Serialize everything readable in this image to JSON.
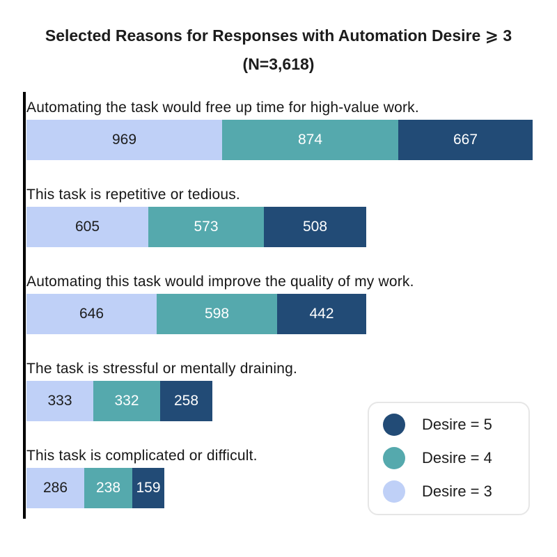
{
  "title": {
    "line1": "Selected Reasons for Responses with Automation Desire ⩾ 3",
    "line2": "(N=3,618)"
  },
  "colors": {
    "desire5_navy": "#224b76",
    "desire4_teal": "#55a9ad",
    "desire3_lightblue": "#bfd0f7",
    "axis": "#000000",
    "title_text": "#1c1c1c",
    "label_text": "#161616",
    "legend_border": "#e6e6e6",
    "background": "#ffffff"
  },
  "legend": {
    "items": [
      {
        "label": "Desire = 5",
        "color": "#224b76"
      },
      {
        "label": "Desire = 4",
        "color": "#55a9ad"
      },
      {
        "label": "Desire = 3",
        "color": "#bfd0f7"
      }
    ]
  },
  "chart_data": {
    "type": "bar",
    "orientation": "horizontal",
    "stacked": true,
    "title": "Selected Reasons for Responses with Automation Desire ⩾ 3 (N=3,618)",
    "xlabel": "",
    "ylabel": "",
    "grid": false,
    "legend_position": "lower right",
    "categories": [
      "Automating the task would free up time for high-value work.",
      "This task is repetitive or tedious.",
      "Automating this task would improve the quality of my work.",
      "The task is stressful or mentally draining.",
      "This task is complicated or difficult."
    ],
    "series": [
      {
        "name": "Desire = 3",
        "color": "#bfd0f7",
        "value_color": "#1c1c1c",
        "values": [
          969,
          605,
          646,
          333,
          286
        ]
      },
      {
        "name": "Desire = 4",
        "color": "#55a9ad",
        "value_color": "#ffffff",
        "values": [
          874,
          573,
          598,
          332,
          238
        ]
      },
      {
        "name": "Desire = 5",
        "color": "#224b76",
        "value_color": "#ffffff",
        "values": [
          667,
          508,
          442,
          258,
          159
        ]
      }
    ],
    "row_totals": [
      2510,
      1686,
      1686,
      923,
      683
    ],
    "x_range_units": [
      0,
      2510
    ]
  }
}
